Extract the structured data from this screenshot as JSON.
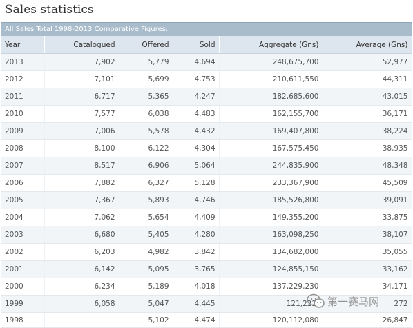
{
  "page": {
    "title": "Sales statistics"
  },
  "table": {
    "caption": "All Sales Total 1998-2013 Comparative Figures:",
    "headers": [
      "Year",
      "Catalogued",
      "Offered",
      "Sold",
      "Aggregate (Gns)",
      "Average (Gns)"
    ],
    "rows": [
      [
        "2013",
        "7,902",
        "5,779",
        "4,694",
        "248,675,700",
        "52,977"
      ],
      [
        "2012",
        "7,101",
        "5,699",
        "4,753",
        "210,611,550",
        "44,311"
      ],
      [
        "2011",
        "6,717",
        "5,365",
        "4,247",
        "182,685,600",
        "43,015"
      ],
      [
        "2010",
        "7,577",
        "6,038",
        "4,483",
        "162,155,700",
        "36,171"
      ],
      [
        "2009",
        "7,006",
        "5,578",
        "4,432",
        "169,407,800",
        "38,224"
      ],
      [
        "2008",
        "8,100",
        "6,122",
        "4,304",
        "167,575,450",
        "38,935"
      ],
      [
        "2007",
        "8,517",
        "6,906",
        "5,064",
        "244,835,900",
        "48,348"
      ],
      [
        "2006",
        "7,882",
        "6,327",
        "5,128",
        "233,367,900",
        "45,509"
      ],
      [
        "2005",
        "7,367",
        "5,893",
        "4,746",
        "185,526,800",
        "39,091"
      ],
      [
        "2004",
        "7,062",
        "5,654",
        "4,409",
        "149,355,200",
        "33,875"
      ],
      [
        "2003",
        "6,680",
        "5,405",
        "4,280",
        "163,098,250",
        "38,107"
      ],
      [
        "2002",
        "6,203",
        "4,982",
        "3,842",
        "134,682,000",
        "35,055"
      ],
      [
        "2001",
        "6,142",
        "5,095",
        "3,765",
        "124,855,150",
        "33,162"
      ],
      [
        "2000",
        "6,234",
        "5,189",
        "4,018",
        "137,229,230",
        "34,171"
      ],
      [
        "1999",
        "6,058",
        "5,047",
        "4,445",
        "121,222,",
        "272"
      ],
      [
        "1998",
        "",
        "5,102",
        "4,474",
        "120,112,080",
        "26,847"
      ]
    ]
  },
  "watermark": {
    "text": "第一赛马网",
    "icon": "wechat-icon"
  },
  "colors": {
    "caption_bg": "#a9bccc",
    "header_bg": "#dde6ee",
    "row_alt_bg": "#f2f5f8"
  }
}
